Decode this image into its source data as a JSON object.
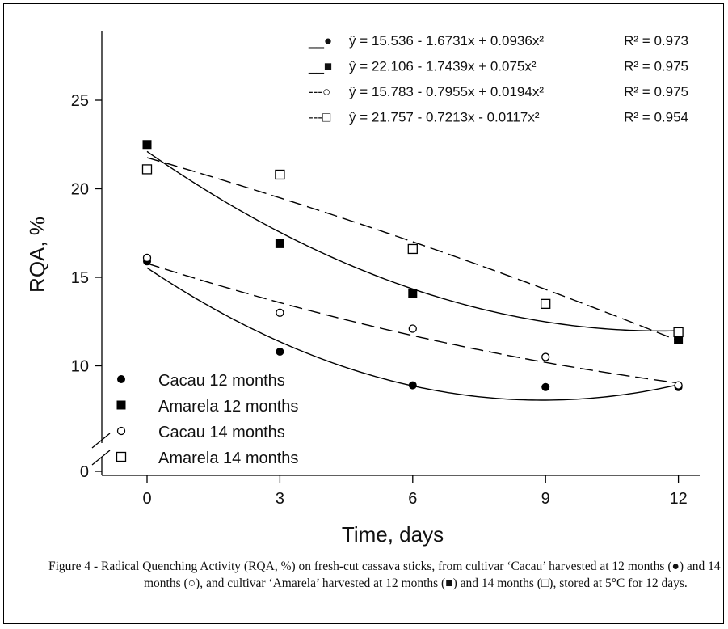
{
  "chart_data": {
    "type": "scatter",
    "xlabel": "Time, days",
    "ylabel": "RQA, %",
    "x": [
      0,
      3,
      6,
      9,
      12
    ],
    "xticks": [
      "0",
      "3",
      "6",
      "9",
      "12"
    ],
    "yticks": [
      "0",
      "10",
      "15",
      "20",
      "25"
    ],
    "ylim": [
      7.5,
      27.5
    ],
    "axis_break": "between 0 and 10 on y-axis",
    "legend_position": "lower-left",
    "series": [
      {
        "name": "Cacau 12 months",
        "marker": "filled-circle",
        "line_style": "solid",
        "values": [
          15.9,
          10.8,
          8.9,
          8.8,
          8.8
        ],
        "equation": "ŷ = 15.536 - 1.6731x + 0.0936x²",
        "r2": "R² = 0.973",
        "coefficients": [
          15.536,
          -1.6731,
          0.0936
        ],
        "eq_key": "__●"
      },
      {
        "name": "Amarela 12 months",
        "marker": "filled-square",
        "line_style": "solid",
        "values": [
          22.5,
          16.9,
          14.1,
          null,
          11.5
        ],
        "equation": "ŷ = 22.106 - 1.7439x + 0.075x²",
        "r2": "R² = 0.975",
        "coefficients": [
          22.106,
          -1.7439,
          0.075
        ],
        "eq_key": "__■"
      },
      {
        "name": "Cacau 14 months",
        "marker": "open-circle",
        "line_style": "dashed",
        "values": [
          16.1,
          13.0,
          12.1,
          10.5,
          8.9
        ],
        "equation": "ŷ = 15.783 - 0.7955x + 0.0194x²",
        "r2": "R² = 0.975",
        "coefficients": [
          15.783,
          -0.7955,
          0.0194
        ],
        "eq_key": "---○"
      },
      {
        "name": "Amarela 14 months",
        "marker": "open-square",
        "line_style": "dashed",
        "values": [
          21.1,
          20.8,
          16.6,
          13.5,
          11.9
        ],
        "equation": "ŷ = 21.757 - 0.7213x - 0.0117x²",
        "r2": "R² = 0.954",
        "coefficients": [
          21.757,
          -0.7213,
          -0.0117
        ],
        "eq_key": "---□"
      }
    ]
  },
  "caption": {
    "label": "Figure 4 - ",
    "text": "Radical Quenching Activity (RQA, %) on fresh-cut cassava sticks, from cultivar ‘Cacau’ harvested at 12 months (●) and 14 months (○), and cultivar ‘Amarela’ harvested at 12 months (■) and 14 months (□), stored at 5°C for 12 days."
  }
}
